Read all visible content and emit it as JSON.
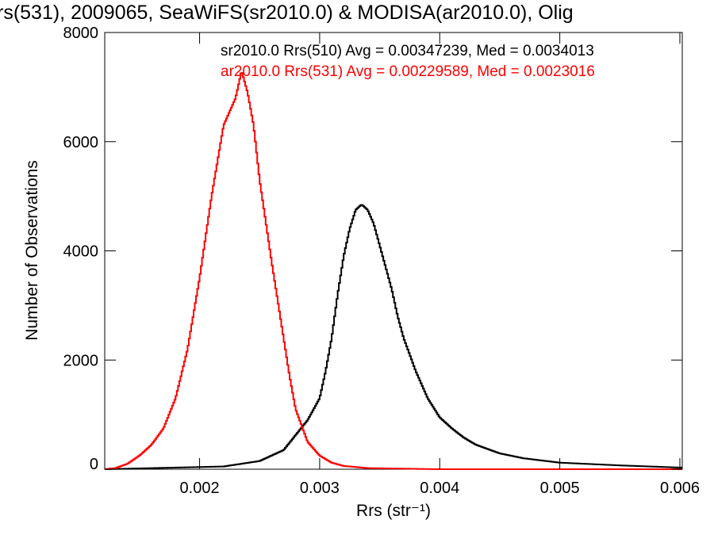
{
  "chart_data": {
    "type": "line",
    "title": "rs(531), 2009065, SeaWiFS(sr2010.0) & MODISA(ar2010.0), Olig",
    "xlabel": "Rrs (str⁻¹)",
    "ylabel": "Number of Observations",
    "xlim": [
      0.00121,
      0.00602
    ],
    "ylim": [
      0,
      8000
    ],
    "x_ticks": [
      "0.002",
      "0.003",
      "0.004",
      "0.005",
      "0.006"
    ],
    "x_tick_values": [
      0.002,
      0.003,
      0.004,
      0.005,
      0.006
    ],
    "y_ticks": [
      "0",
      "2000",
      "4000",
      "6000",
      "8000"
    ],
    "y_tick_values": [
      0,
      2000,
      4000,
      6000,
      8000
    ],
    "grid": false,
    "legend_position": "top-right",
    "series": [
      {
        "name": "sr2010.0 Rrs(510) Avg = 0.00347239, Med = 0.0034013",
        "color": "#000000",
        "style": "step",
        "points": [
          [
            0.00121,
            0
          ],
          [
            0.0022,
            50
          ],
          [
            0.0025,
            150
          ],
          [
            0.0027,
            350
          ],
          [
            0.0029,
            900
          ],
          [
            0.003,
            1300
          ],
          [
            0.00305,
            1800
          ],
          [
            0.0031,
            2400
          ],
          [
            0.00315,
            3200
          ],
          [
            0.0032,
            3900
          ],
          [
            0.00325,
            4400
          ],
          [
            0.0033,
            4750
          ],
          [
            0.00335,
            4850
          ],
          [
            0.0034,
            4750
          ],
          [
            0.00345,
            4500
          ],
          [
            0.0035,
            4100
          ],
          [
            0.00355,
            3700
          ],
          [
            0.0036,
            3300
          ],
          [
            0.00365,
            2800
          ],
          [
            0.0037,
            2400
          ],
          [
            0.0038,
            1800
          ],
          [
            0.0039,
            1300
          ],
          [
            0.004,
            950
          ],
          [
            0.0041,
            750
          ],
          [
            0.0042,
            580
          ],
          [
            0.0043,
            450
          ],
          [
            0.0045,
            290
          ],
          [
            0.0047,
            200
          ],
          [
            0.005,
            120
          ],
          [
            0.0055,
            70
          ],
          [
            0.006,
            30
          ]
        ]
      },
      {
        "name": "ar2010.0 Rrs(531) Avg = 0.00229589, Med = 0.0023016",
        "color": "#ff0000",
        "style": "step",
        "points": [
          [
            0.00121,
            0
          ],
          [
            0.0013,
            20
          ],
          [
            0.0014,
            100
          ],
          [
            0.0015,
            250
          ],
          [
            0.0016,
            450
          ],
          [
            0.0017,
            750
          ],
          [
            0.0018,
            1300
          ],
          [
            0.0019,
            2200
          ],
          [
            0.002,
            3500
          ],
          [
            0.0021,
            5000
          ],
          [
            0.0022,
            6300
          ],
          [
            0.0023,
            6800
          ],
          [
            0.00235,
            7300
          ],
          [
            0.0024,
            6900
          ],
          [
            0.00245,
            6300
          ],
          [
            0.0025,
            5300
          ],
          [
            0.0026,
            3800
          ],
          [
            0.0027,
            2400
          ],
          [
            0.00275,
            1700
          ],
          [
            0.0028,
            1100
          ],
          [
            0.0029,
            500
          ],
          [
            0.003,
            250
          ],
          [
            0.0031,
            120
          ],
          [
            0.0032,
            60
          ],
          [
            0.0034,
            20
          ],
          [
            0.004,
            0
          ],
          [
            0.006,
            0
          ]
        ]
      }
    ]
  }
}
